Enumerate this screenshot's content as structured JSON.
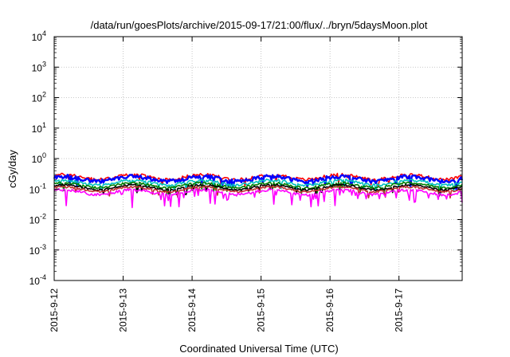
{
  "chart_data": {
    "type": "line",
    "title": "/data/run/goesPlots/archive/2015-09-17/21:00/flux/../bryn/5daysMoon.plot",
    "xlabel": "Coordinated Universal Time (UTC)",
    "ylabel": "cGy/day",
    "yscale": "log",
    "ylim": [
      0.0001,
      10000
    ],
    "xlim": [
      "2015-09-12",
      "2015-09-17 22:00"
    ],
    "grid": true,
    "legend": "none",
    "x_ticks": [
      "2015-9-12",
      "2015-9-13",
      "2015-9-14",
      "2015-9-15",
      "2015-9-16",
      "2015-9-17"
    ],
    "y_ticks": [
      {
        "base": "10",
        "exp": "-4"
      },
      {
        "base": "10",
        "exp": "-3"
      },
      {
        "base": "10",
        "exp": "-2"
      },
      {
        "base": "10",
        "exp": "-1"
      },
      {
        "base": "10",
        "exp": "0"
      },
      {
        "base": "10",
        "exp": "1"
      },
      {
        "base": "10",
        "exp": "2"
      },
      {
        "base": "10",
        "exp": "3"
      },
      {
        "base": "10",
        "exp": "4"
      }
    ],
    "series": [
      {
        "color": "#ff0000",
        "base": 0.25,
        "spread": 0.12,
        "dips": false
      },
      {
        "color": "#0000ff",
        "base": 0.22,
        "spread": 0.14,
        "dips": false
      },
      {
        "color": "#00c0c0",
        "base": 0.165,
        "spread": 0.1,
        "dips": false
      },
      {
        "color": "#008000",
        "base": 0.135,
        "spread": 0.08,
        "dips": false
      },
      {
        "color": "#000000",
        "base": 0.115,
        "spread": 0.07,
        "dips": false
      },
      {
        "color": "#c03030",
        "base": 0.1,
        "spread": 0.07,
        "dips": false
      },
      {
        "color": "#ff00ff",
        "base": 0.08,
        "spread": 0.1,
        "dips": true
      }
    ]
  }
}
